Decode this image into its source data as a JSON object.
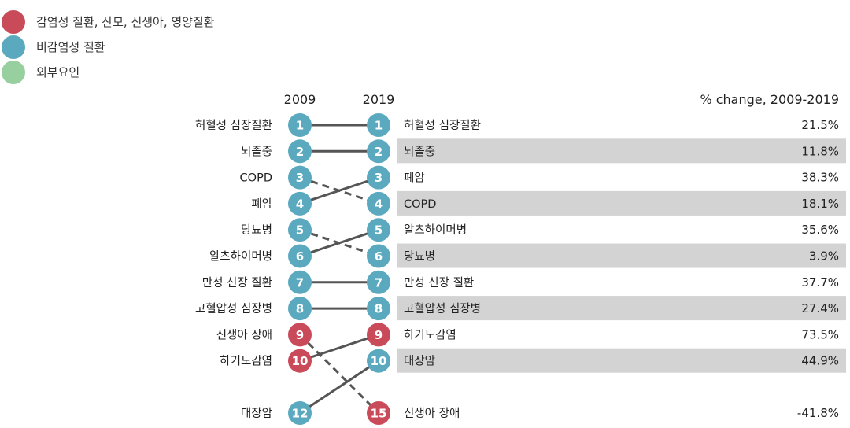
{
  "chart_data": {
    "type": "slope",
    "title": "",
    "legend": [
      {
        "name": "감염성 질환, 산모, 신생아, 영양질환",
        "color": "#c94b5a"
      },
      {
        "name": "비감염성 질환",
        "color": "#5ba9bf"
      },
      {
        "name": "외부요인",
        "color": "#97d09e"
      }
    ],
    "year_start": "2009",
    "year_end": "2019",
    "pct_header": "% change, 2009-2019",
    "rows": [
      {
        "left_label": "허혈성 심장질환",
        "rank2009": 1,
        "right_label": "허혈성 심장질환",
        "rank2019": 1,
        "pct": "21.5%",
        "line": "solid",
        "left_color": "#5ba9bf",
        "right_color": "#5ba9bf",
        "shaded": false
      },
      {
        "left_label": "뇌졸중",
        "rank2009": 2,
        "right_label": "뇌졸중",
        "rank2019": 2,
        "pct": "11.8%",
        "line": "solid",
        "left_color": "#5ba9bf",
        "right_color": "#5ba9bf",
        "shaded": true
      },
      {
        "left_label": "COPD",
        "rank2009": 3,
        "right_label": "폐암",
        "rank2019": 3,
        "pct": "38.3%",
        "line": "dashed",
        "left_color": "#5ba9bf",
        "right_color": "#5ba9bf",
        "shaded": false
      },
      {
        "left_label": "폐암",
        "rank2009": 4,
        "right_label": "COPD",
        "rank2019": 4,
        "pct": "18.1%",
        "line": "solid",
        "left_color": "#5ba9bf",
        "right_color": "#5ba9bf",
        "shaded": true
      },
      {
        "left_label": "당뇨병",
        "rank2009": 5,
        "right_label": "알츠하이머병",
        "rank2019": 5,
        "pct": "35.6%",
        "line": "dashed",
        "left_color": "#5ba9bf",
        "right_color": "#5ba9bf",
        "shaded": false
      },
      {
        "left_label": "알츠하이머병",
        "rank2009": 6,
        "right_label": "당뇨병",
        "rank2019": 6,
        "pct": "3.9%",
        "line": "solid",
        "left_color": "#5ba9bf",
        "right_color": "#5ba9bf",
        "shaded": true
      },
      {
        "left_label": "만성 신장 질환",
        "rank2009": 7,
        "right_label": "만성 신장 질환",
        "rank2019": 7,
        "pct": "37.7%",
        "line": "solid",
        "left_color": "#5ba9bf",
        "right_color": "#5ba9bf",
        "shaded": false
      },
      {
        "left_label": "고혈압성 심장병",
        "rank2009": 8,
        "right_label": "고혈압성 심장병",
        "rank2019": 8,
        "pct": "27.4%",
        "line": "solid",
        "left_color": "#5ba9bf",
        "right_color": "#5ba9bf",
        "shaded": true
      },
      {
        "left_label": "신생아 장애",
        "rank2009": 9,
        "right_label": "하기도감염",
        "rank2019": 9,
        "pct": "73.5%",
        "line": "dashed",
        "left_color": "#c94b5a",
        "right_color": "#c94b5a",
        "shaded": false
      },
      {
        "left_label": "하기도감염",
        "rank2009": 10,
        "right_label": "대장암",
        "rank2019": 10,
        "pct": "44.9%",
        "line": "solid",
        "left_color": "#c94b5a",
        "right_color": "#5ba9bf",
        "shaded": true
      },
      {
        "left_label": "대장암",
        "rank2009": 12,
        "right_label": "신생아 장애",
        "rank2019": 15,
        "pct": "-41.8%",
        "line": "none",
        "left_color": "#5ba9bf",
        "right_color": "#c94b5a",
        "shaded": false
      }
    ],
    "links": [
      {
        "from": 1,
        "to": 1,
        "style": "solid"
      },
      {
        "from": 2,
        "to": 2,
        "style": "solid"
      },
      {
        "from": 3,
        "to": 4,
        "style": "dashed"
      },
      {
        "from": 4,
        "to": 3,
        "style": "solid"
      },
      {
        "from": 5,
        "to": 6,
        "style": "dashed"
      },
      {
        "from": 6,
        "to": 5,
        "style": "solid"
      },
      {
        "from": 7,
        "to": 7,
        "style": "solid"
      },
      {
        "from": 8,
        "to": 8,
        "style": "solid"
      },
      {
        "from": 9,
        "to": 15,
        "style": "dashed"
      },
      {
        "from": 10,
        "to": 9,
        "style": "solid"
      },
      {
        "from": 12,
        "to": 10,
        "style": "solid"
      }
    ],
    "shade_color": "#d3d3d3",
    "line_color": "#555555"
  }
}
